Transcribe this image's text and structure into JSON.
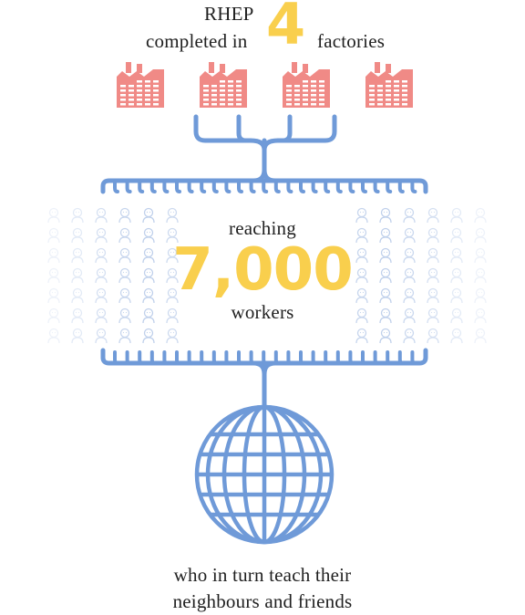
{
  "header": {
    "line1": "RHEP",
    "line2_prefix": "completed in",
    "count": "4",
    "line2_suffix": "factories"
  },
  "factories": {
    "icon": "factory-icon",
    "count": 4,
    "color": "#f08a86"
  },
  "reach": {
    "prefix": "reaching",
    "count": "7,000",
    "suffix": "workers",
    "accent": "#f9cf4d",
    "people_icon": "person-icon"
  },
  "network": {
    "line_color": "#6f9ad8",
    "globe_icon": "globe-icon"
  },
  "caption": {
    "line1": "who in turn teach their",
    "line2": "neighbours and friends"
  }
}
